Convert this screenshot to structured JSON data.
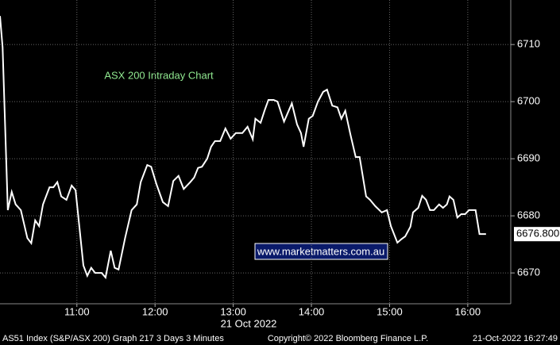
{
  "chart_data": {
    "type": "line",
    "annotation": "ASX 200 Intraday Chart",
    "watermark": "www.marketmatters.com.au",
    "date_label": "21 Oct 2022",
    "x": [
      601,
      603,
      607,
      610,
      613,
      617,
      622,
      625,
      628,
      631,
      634,
      639,
      642,
      645,
      648,
      652,
      656,
      659,
      665,
      668,
      671,
      674,
      679,
      682,
      686,
      689,
      692,
      697,
      702,
      706,
      709,
      714,
      717,
      721,
      726,
      730,
      734,
      738,
      742,
      747,
      750,
      753,
      756,
      760,
      763,
      766,
      770,
      774,
      778,
      782,
      787,
      791,
      795,
      797,
      801,
      804,
      807,
      811,
      814,
      819,
      822,
      825,
      829,
      832,
      834,
      838,
      841,
      845,
      849,
      852,
      856,
      860,
      863,
      866,
      870,
      874,
      877,
      882,
      885,
      889,
      894,
      898,
      901,
      906,
      909,
      912,
      916,
      918,
      922,
      925,
      928,
      931,
      934,
      938,
      941,
      944,
      946,
      949,
      952,
      955,
      958,
      961,
      966,
      969,
      974
    ],
    "series": [
      {
        "color": "#ffffff",
        "values": [
          6715.0,
          6709.5,
          6681.0,
          6684.2,
          6682.0,
          6681.0,
          6676.1,
          6675.2,
          6679.2,
          6678.2,
          6682.0,
          6685.0,
          6685.0,
          6685.9,
          6683.4,
          6682.8,
          6685.3,
          6684.5,
          6671.3,
          6669.5,
          6670.9,
          6670.0,
          6670.0,
          6669.2,
          6673.9,
          6670.9,
          6670.6,
          6676.1,
          6681.0,
          6682.0,
          6685.9,
          6688.9,
          6688.6,
          6685.6,
          6682.4,
          6681.7,
          6686.1,
          6687.0,
          6684.7,
          6685.9,
          6686.7,
          6688.4,
          6688.6,
          6690.0,
          6692.1,
          6693.1,
          6693.1,
          6695.3,
          6693.5,
          6694.5,
          6694.5,
          6695.6,
          6693.4,
          6697.0,
          6696.3,
          6698.4,
          6700.3,
          6700.3,
          6700.0,
          6696.5,
          6698.1,
          6699.7,
          6696.0,
          6694.5,
          6692.1,
          6697.0,
          6697.5,
          6700.0,
          6701.7,
          6702.1,
          6699.3,
          6699.0,
          6697.0,
          6698.4,
          6694.2,
          6690.3,
          6690.3,
          6683.4,
          6682.8,
          6681.7,
          6680.6,
          6681.0,
          6678.2,
          6675.3,
          6675.9,
          6676.4,
          6678.1,
          6680.6,
          6681.4,
          6683.5,
          6682.8,
          6681.0,
          6681.0,
          6682.0,
          6681.4,
          6682.0,
          6683.4,
          6682.8,
          6679.7,
          6680.3,
          6680.3,
          6681.0,
          6681.0,
          6676.8,
          6676.8
        ],
        "value_labels": [
          null,
          null,
          null,
          null,
          null,
          null,
          null,
          null,
          null,
          null,
          null,
          null,
          null,
          null,
          null,
          null,
          null,
          null,
          null,
          null,
          null,
          null,
          null,
          null,
          null,
          null,
          null,
          null,
          null,
          null,
          null,
          null,
          null,
          null,
          null,
          null,
          null,
          null,
          null,
          null,
          null,
          null,
          null,
          null,
          null,
          null,
          null,
          null,
          null,
          null,
          null,
          null,
          null,
          null,
          null,
          null,
          null,
          null,
          null,
          null,
          null,
          null,
          null,
          null,
          null,
          null,
          null,
          null,
          null,
          null,
          null,
          null,
          null,
          null,
          null,
          null,
          null,
          null,
          null,
          null,
          null,
          null,
          null,
          null,
          null,
          null,
          null,
          null,
          null,
          null,
          null,
          null,
          null,
          null,
          null,
          null,
          null,
          null,
          null,
          null,
          null,
          null,
          null,
          null,
          "6676.800"
        ]
      }
    ],
    "xlim": [
      601,
      993
    ],
    "xticks": [
      {
        "value": 660,
        "label": "11:00"
      },
      {
        "value": 720,
        "label": "12:00"
      },
      {
        "value": 780,
        "label": "13:00"
      },
      {
        "value": 840,
        "label": "14:00"
      },
      {
        "value": 900,
        "label": "15:00"
      },
      {
        "value": 960,
        "label": "16:00"
      }
    ],
    "ylim": [
      6664.6,
      6717.8
    ],
    "yticks": [
      6670,
      6680,
      6690,
      6700,
      6710
    ],
    "grid": true
  },
  "footer": {
    "left": "AS51 Index (S&P/ASX 200) Graph 217 3 Days 3 Minutes",
    "center": "Copyright© 2022 Bloomberg Finance L.P.",
    "right": "21-Oct-2022 16:27:49"
  }
}
